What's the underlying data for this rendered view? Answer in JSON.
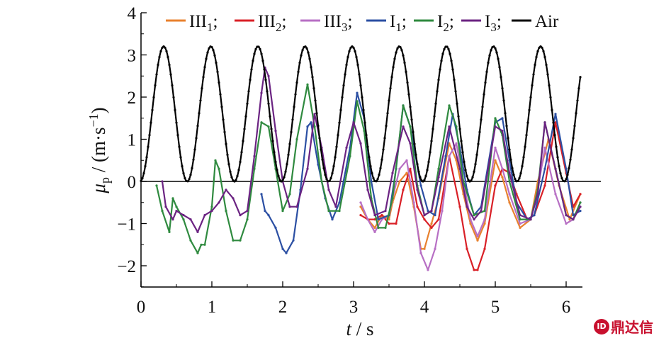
{
  "chart_data": {
    "type": "line",
    "xlabel": "t / s",
    "ylabel": "μp / (m·s⁻¹)",
    "xlim": [
      0,
      6.2
    ],
    "ylim": [
      -2.5,
      4
    ],
    "xticks": [
      0,
      1,
      2,
      3,
      4,
      5,
      6
    ],
    "yticks": [
      4,
      3,
      2,
      1,
      0,
      -1,
      -2
    ],
    "ytick_labels": [
      "4",
      "3",
      "2",
      "1",
      "0",
      "−1",
      "−2"
    ],
    "grid": false,
    "legend_position": "top",
    "series": [
      {
        "name": "III1",
        "label_main": "III",
        "label_sub": "1",
        "color": "#e8812e",
        "x": [
          3.1,
          3.2,
          3.3,
          3.4,
          3.5,
          3.55,
          3.65,
          3.75,
          3.85,
          3.95,
          4.0,
          4.1,
          4.2,
          4.35,
          4.45,
          4.55,
          4.65,
          4.75,
          4.85,
          5.0,
          5.1,
          5.2,
          5.35,
          5.5,
          5.6,
          5.75,
          5.9,
          6.05,
          6.2
        ],
        "y": [
          -0.6,
          -0.9,
          -1.1,
          -0.8,
          -0.9,
          -0.5,
          0.0,
          0.2,
          -0.6,
          -1.6,
          -1.6,
          -1.0,
          -0.4,
          0.9,
          0.5,
          -0.3,
          -1.0,
          -1.4,
          -1.0,
          0.5,
          0.1,
          -0.5,
          -1.1,
          -0.9,
          0.0,
          1.0,
          -0.1,
          -0.9,
          -0.3
        ]
      },
      {
        "name": "III2",
        "label_main": "III",
        "label_sub": "2",
        "color": "#d92027",
        "x": [
          3.1,
          3.2,
          3.3,
          3.4,
          3.5,
          3.6,
          3.7,
          3.8,
          3.9,
          4.0,
          4.1,
          4.2,
          4.35,
          4.5,
          4.6,
          4.7,
          4.75,
          4.85,
          5.0,
          5.1,
          5.2,
          5.3,
          5.45,
          5.55,
          5.7,
          5.85,
          6.0,
          6.1,
          6.2
        ],
        "y": [
          -0.8,
          -0.9,
          -0.9,
          -0.8,
          -1.0,
          -1.0,
          -0.2,
          0.3,
          -0.6,
          -0.9,
          -1.1,
          -0.9,
          0.6,
          -0.6,
          -1.6,
          -2.1,
          -2.1,
          -1.6,
          -0.1,
          0.3,
          0.2,
          -0.3,
          -0.9,
          -0.8,
          -0.1,
          1.4,
          0.2,
          -0.6,
          -0.3
        ]
      },
      {
        "name": "III3",
        "label_main": "III",
        "label_sub": "3",
        "color": "#b76fc4",
        "x": [
          3.1,
          3.2,
          3.3,
          3.4,
          3.5,
          3.55,
          3.65,
          3.75,
          3.85,
          3.95,
          4.05,
          4.15,
          4.25,
          4.35,
          4.45,
          4.55,
          4.65,
          4.75,
          4.85,
          5.0,
          5.1,
          5.2,
          5.35,
          5.5,
          5.6,
          5.7,
          5.85,
          6.0,
          6.1,
          6.2
        ],
        "y": [
          -0.5,
          -0.9,
          -1.2,
          -0.9,
          -0.8,
          -0.4,
          0.3,
          0.5,
          -0.5,
          -1.7,
          -2.1,
          -1.6,
          -0.7,
          0.6,
          0.9,
          0.0,
          -0.9,
          -1.3,
          -0.9,
          0.8,
          0.3,
          -0.3,
          -1.0,
          -0.9,
          -0.2,
          0.8,
          -0.3,
          -1.0,
          -0.9,
          -0.5
        ]
      },
      {
        "name": "I1",
        "label_main": "I",
        "label_sub": "1",
        "color": "#2b4fa3",
        "x": [
          1.7,
          1.75,
          1.8,
          1.9,
          2.0,
          2.05,
          2.15,
          2.25,
          2.35,
          2.4,
          2.5,
          2.6,
          2.7,
          2.8,
          2.95,
          3.05,
          3.15,
          3.25,
          3.35,
          3.5,
          3.6,
          3.7,
          3.8,
          3.95,
          4.05,
          4.15,
          4.3,
          4.4,
          4.5,
          4.6,
          4.7,
          4.8,
          5.0,
          5.1,
          5.2,
          5.3,
          5.45,
          5.55,
          5.7,
          5.85,
          6.0,
          6.1,
          6.2
        ],
        "y": [
          -0.3,
          -0.7,
          -0.8,
          -1.1,
          -1.6,
          -1.7,
          -1.4,
          -0.2,
          1.3,
          1.4,
          0.4,
          -0.4,
          -0.9,
          -0.5,
          0.8,
          2.1,
          1.5,
          0.0,
          -0.9,
          -0.8,
          0.3,
          1.8,
          1.3,
          -0.1,
          -0.7,
          -0.8,
          0.6,
          1.6,
          0.8,
          -0.2,
          -0.8,
          -0.6,
          1.4,
          1.5,
          0.5,
          -0.5,
          -0.9,
          -0.8,
          0.3,
          1.6,
          0.3,
          -0.8,
          -0.7
        ]
      },
      {
        "name": "I2",
        "label_main": "I",
        "label_sub": "2",
        "color": "#2f8a3f",
        "x": [
          0.22,
          0.3,
          0.4,
          0.45,
          0.5,
          0.6,
          0.7,
          0.8,
          0.85,
          0.9,
          1.0,
          1.05,
          1.1,
          1.2,
          1.3,
          1.4,
          1.5,
          1.6,
          1.7,
          1.8,
          1.9,
          2.0,
          2.1,
          2.2,
          2.35,
          2.45,
          2.55,
          2.65,
          2.8,
          2.95,
          3.05,
          3.15,
          3.25,
          3.35,
          3.45,
          3.55,
          3.7,
          3.8,
          3.9,
          4.0,
          4.1,
          4.2,
          4.35,
          4.45,
          4.55,
          4.7,
          4.85,
          5.0,
          5.1,
          5.2,
          5.35,
          5.5,
          5.6,
          5.7,
          5.85,
          6.0,
          6.1,
          6.2
        ],
        "y": [
          -0.1,
          -0.7,
          -1.2,
          -0.4,
          -0.6,
          -0.9,
          -1.4,
          -1.7,
          -1.5,
          -1.5,
          -0.6,
          0.5,
          0.3,
          -0.7,
          -1.4,
          -1.4,
          -0.9,
          0.3,
          1.4,
          1.3,
          0.3,
          -0.7,
          -0.3,
          1.0,
          2.3,
          1.3,
          0.0,
          -0.7,
          -0.7,
          0.6,
          1.9,
          1.2,
          -0.4,
          -1.1,
          -1.1,
          -0.4,
          1.8,
          1.3,
          -0.1,
          -0.8,
          -0.7,
          0.3,
          1.8,
          1.3,
          0.0,
          -0.8,
          -0.7,
          1.5,
          1.1,
          0.0,
          -0.9,
          -0.9,
          -0.2,
          1.4,
          0.3,
          -0.8,
          -0.9,
          -0.5
        ]
      },
      {
        "name": "I3",
        "label_main": "I",
        "label_sub": "3",
        "color": "#6b2382",
        "x": [
          0.3,
          0.35,
          0.45,
          0.5,
          0.6,
          0.7,
          0.8,
          0.9,
          1.0,
          1.1,
          1.2,
          1.3,
          1.4,
          1.5,
          1.6,
          1.7,
          1.75,
          1.8,
          1.9,
          2.0,
          2.1,
          2.2,
          2.35,
          2.45,
          2.55,
          2.65,
          2.75,
          2.9,
          3.0,
          3.1,
          3.2,
          3.3,
          3.45,
          3.55,
          3.7,
          3.8,
          3.9,
          4.0,
          4.1,
          4.2,
          4.35,
          4.5,
          4.6,
          4.7,
          4.8,
          5.0,
          5.1,
          5.2,
          5.35,
          5.5,
          5.6,
          5.7,
          5.85,
          6.0,
          6.1,
          6.2
        ],
        "y": [
          0.0,
          -0.6,
          -0.9,
          -0.7,
          -0.8,
          -0.9,
          -1.2,
          -0.8,
          -0.7,
          -0.5,
          -0.2,
          -0.4,
          -0.8,
          -0.7,
          0.6,
          2.1,
          2.7,
          2.5,
          1.2,
          0.0,
          -0.6,
          -0.6,
          0.3,
          1.6,
          0.8,
          -0.2,
          -0.6,
          0.8,
          1.4,
          0.9,
          -0.2,
          -0.8,
          -0.7,
          0.2,
          1.3,
          0.9,
          -0.2,
          -0.8,
          -0.7,
          0.1,
          1.3,
          0.3,
          -0.6,
          -0.9,
          -0.7,
          1.3,
          1.2,
          0.2,
          -0.8,
          -0.9,
          -0.3,
          1.4,
          0.3,
          -0.8,
          -0.9,
          -0.6
        ]
      },
      {
        "name": "Air",
        "label_main": "Air",
        "label_sub": "",
        "color": "#000000",
        "kind": "sine",
        "mean": 1.6,
        "amplitude": 1.6,
        "period": 0.665,
        "peak_time": 0.32
      }
    ]
  },
  "watermark": {
    "icon": "ID",
    "text": "鼎达信"
  }
}
